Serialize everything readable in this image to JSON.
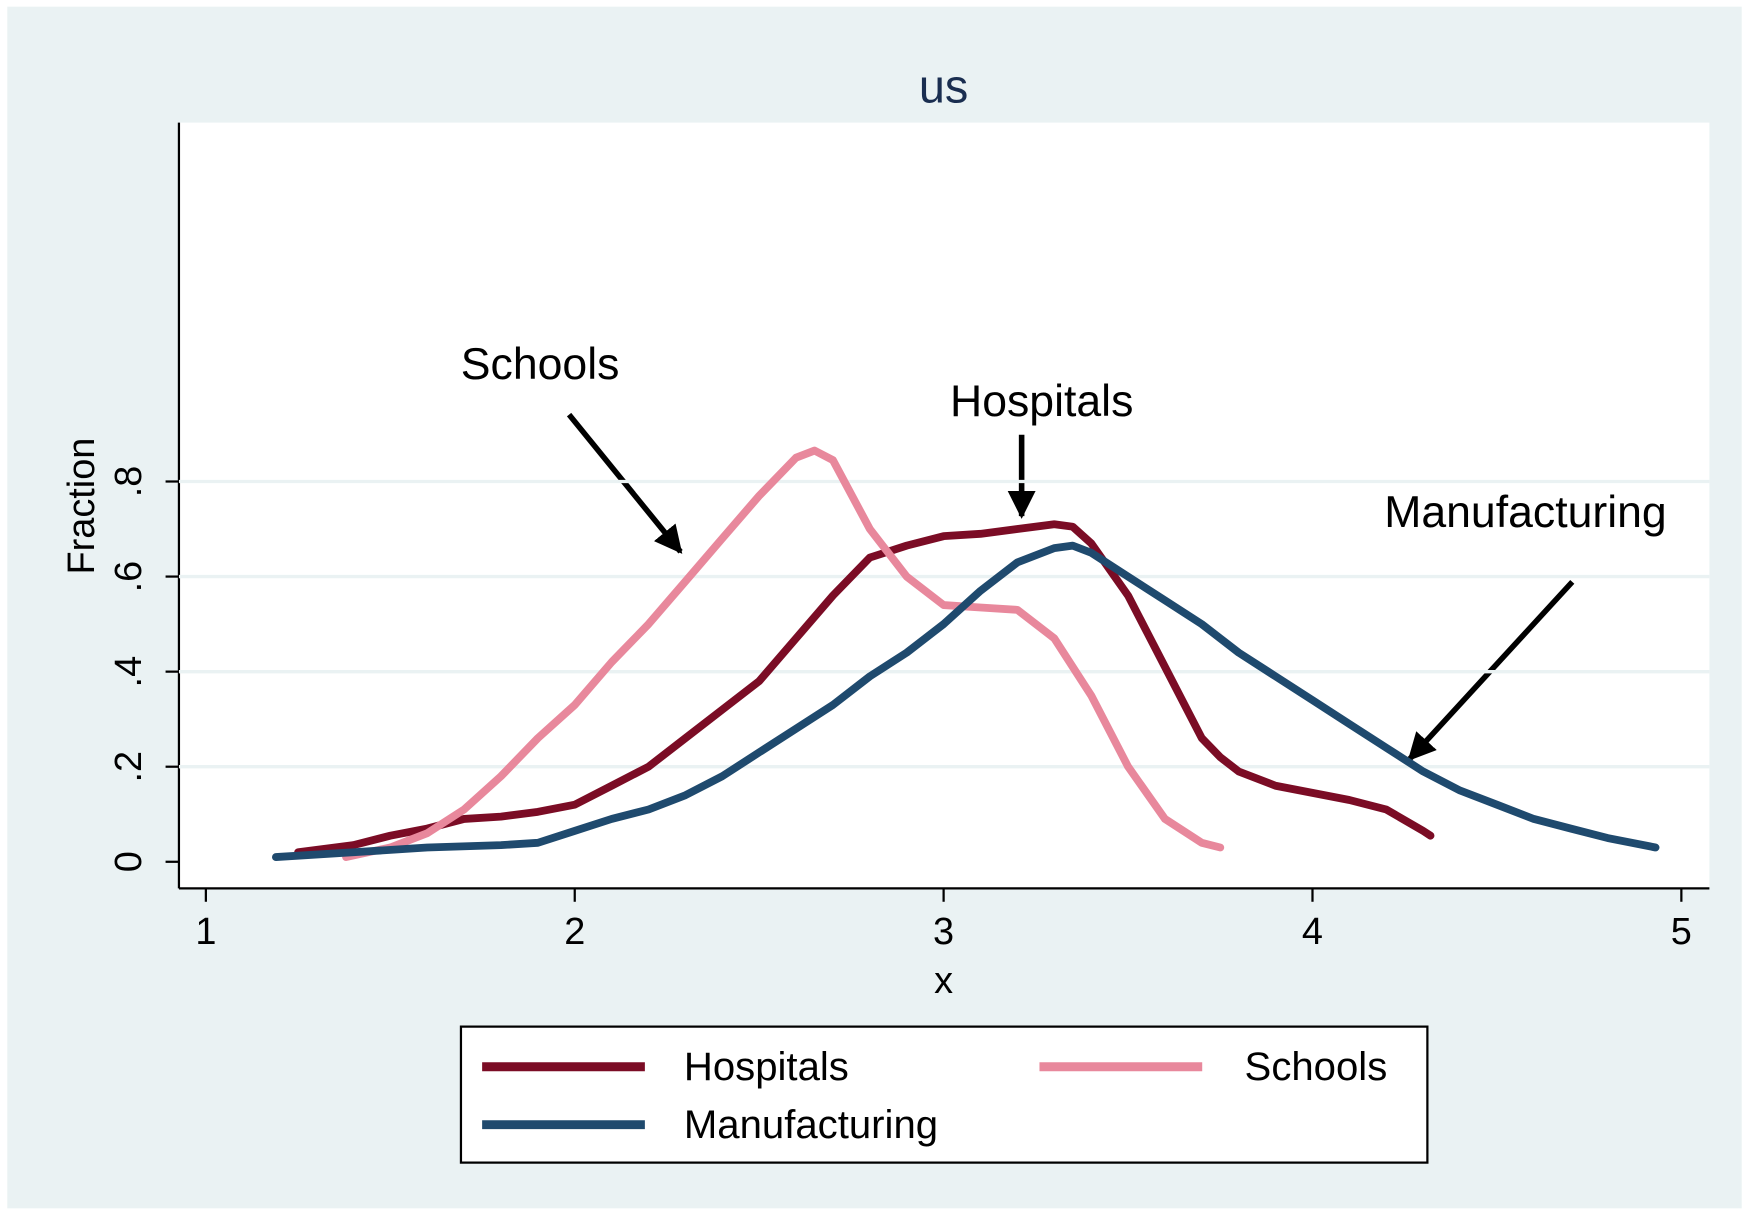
{
  "chart_data": {
    "type": "line",
    "title": "us",
    "x_label": "x",
    "y_label": "Fraction",
    "xlim": [
      0.927,
      5.076
    ],
    "ylim": [
      -0.056,
      1.555
    ],
    "xticks": [
      1,
      2,
      3,
      4,
      5
    ],
    "yticks": [
      0,
      {
        "value": 0.2,
        "label": ".2"
      },
      {
        "value": 0.4,
        "label": ".4"
      },
      {
        "value": 0.6,
        "label": ".6"
      },
      {
        "value": 0.8,
        "label": ".8"
      }
    ],
    "grid": true,
    "series": [
      {
        "name": "Hospitals",
        "color": "#7b0c25",
        "x": [
          1.25,
          1.4,
          1.5,
          1.6,
          1.7,
          1.8,
          1.9,
          2.0,
          2.1,
          2.2,
          2.3,
          2.4,
          2.5,
          2.6,
          2.7,
          2.8,
          2.9,
          3.0,
          3.1,
          3.2,
          3.3,
          3.35,
          3.4,
          3.5,
          3.6,
          3.7,
          3.75,
          3.8,
          3.9,
          4.0,
          4.1,
          4.2,
          4.3,
          4.32
        ],
        "values": [
          0.02,
          0.035,
          0.055,
          0.07,
          0.09,
          0.095,
          0.105,
          0.12,
          0.16,
          0.2,
          0.26,
          0.32,
          0.38,
          0.47,
          0.56,
          0.64,
          0.665,
          0.685,
          0.69,
          0.7,
          0.71,
          0.705,
          0.67,
          0.56,
          0.41,
          0.26,
          0.22,
          0.19,
          0.16,
          0.145,
          0.13,
          0.11,
          0.065,
          0.055
        ]
      },
      {
        "name": "Schools",
        "color": "#e8889c",
        "x": [
          1.38,
          1.5,
          1.6,
          1.7,
          1.8,
          1.9,
          2.0,
          2.1,
          2.2,
          2.3,
          2.4,
          2.5,
          2.6,
          2.65,
          2.7,
          2.8,
          2.9,
          3.0,
          3.1,
          3.2,
          3.3,
          3.4,
          3.5,
          3.6,
          3.7,
          3.75
        ],
        "values": [
          0.01,
          0.03,
          0.06,
          0.11,
          0.18,
          0.26,
          0.33,
          0.42,
          0.5,
          0.59,
          0.68,
          0.77,
          0.85,
          0.865,
          0.845,
          0.7,
          0.6,
          0.54,
          0.535,
          0.53,
          0.47,
          0.35,
          0.2,
          0.09,
          0.04,
          0.03
        ]
      },
      {
        "name": "Manufacturing",
        "color": "#1f4a6e",
        "x": [
          1.19,
          1.4,
          1.6,
          1.8,
          1.9,
          2.0,
          2.1,
          2.2,
          2.3,
          2.4,
          2.5,
          2.6,
          2.7,
          2.8,
          2.9,
          3.0,
          3.1,
          3.2,
          3.3,
          3.35,
          3.4,
          3.5,
          3.6,
          3.7,
          3.8,
          3.9,
          4.0,
          4.1,
          4.2,
          4.3,
          4.4,
          4.5,
          4.6,
          4.7,
          4.8,
          4.93
        ],
        "values": [
          0.01,
          0.02,
          0.03,
          0.035,
          0.04,
          0.065,
          0.09,
          0.11,
          0.14,
          0.18,
          0.23,
          0.28,
          0.33,
          0.39,
          0.44,
          0.5,
          0.57,
          0.63,
          0.66,
          0.665,
          0.65,
          0.6,
          0.55,
          0.5,
          0.44,
          0.39,
          0.34,
          0.29,
          0.24,
          0.19,
          0.15,
          0.12,
          0.09,
          0.07,
          0.05,
          0.03
        ]
      }
    ],
    "annotations": [
      "Schools",
      "Hospitals",
      "Manufacturing"
    ]
  }
}
